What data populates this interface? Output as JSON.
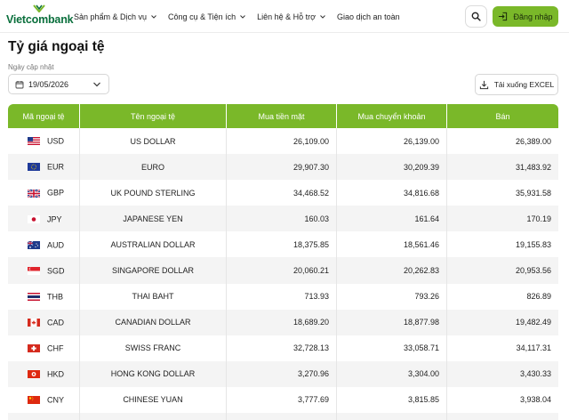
{
  "nav": {
    "brand": "Vietcombank",
    "menu": [
      {
        "label": "Sản phẩm & Dịch vụ",
        "has_dropdown": true
      },
      {
        "label": "Công cụ & Tiện ích",
        "has_dropdown": true
      },
      {
        "label": "Liên hệ & Hỗ trợ",
        "has_dropdown": true
      },
      {
        "label": "Giao dịch an toàn",
        "has_dropdown": false
      }
    ],
    "search_icon": "search-icon",
    "login_label": "Đăng nhập",
    "accent_color": "#7ab829",
    "brand_color": "#0a6f3c"
  },
  "page": {
    "title": "Tỷ giá ngoại tệ",
    "update_label": "Ngày cập nhật",
    "date_value": "19/05/2026",
    "download_label": "Tải xuống EXCEL"
  },
  "table": {
    "headers": [
      "Mã ngoại tệ",
      "Tên ngoại tệ",
      "Mua tiền mặt",
      "Mua chuyển khoản",
      "Bán"
    ],
    "rows": [
      {
        "code": "USD",
        "flag": "us",
        "name": "US DOLLAR",
        "cash_buy": "26,109.00",
        "transfer_buy": "26,139.00",
        "sell": "26,389.00"
      },
      {
        "code": "EUR",
        "flag": "eu",
        "name": "EURO",
        "cash_buy": "29,907.30",
        "transfer_buy": "30,209.39",
        "sell": "31,483.92"
      },
      {
        "code": "GBP",
        "flag": "gb",
        "name": "UK POUND STERLING",
        "cash_buy": "34,468.52",
        "transfer_buy": "34,816.68",
        "sell": "35,931.58"
      },
      {
        "code": "JPY",
        "flag": "jp",
        "name": "JAPANESE YEN",
        "cash_buy": "160.03",
        "transfer_buy": "161.64",
        "sell": "170.19"
      },
      {
        "code": "AUD",
        "flag": "au",
        "name": "AUSTRALIAN DOLLAR",
        "cash_buy": "18,375.85",
        "transfer_buy": "18,561.46",
        "sell": "19,155.83"
      },
      {
        "code": "SGD",
        "flag": "sg",
        "name": "SINGAPORE DOLLAR",
        "cash_buy": "20,060.21",
        "transfer_buy": "20,262.83",
        "sell": "20,953.56"
      },
      {
        "code": "THB",
        "flag": "th",
        "name": "THAI BAHT",
        "cash_buy": "713.93",
        "transfer_buy": "793.26",
        "sell": "826.89"
      },
      {
        "code": "CAD",
        "flag": "ca",
        "name": "CANADIAN DOLLAR",
        "cash_buy": "18,689.20",
        "transfer_buy": "18,877.98",
        "sell": "19,482.49"
      },
      {
        "code": "CHF",
        "flag": "ch",
        "name": "SWISS FRANC",
        "cash_buy": "32,728.13",
        "transfer_buy": "33,058.71",
        "sell": "34,117.31"
      },
      {
        "code": "HKD",
        "flag": "hk",
        "name": "HONG KONG DOLLAR",
        "cash_buy": "3,270.96",
        "transfer_buy": "3,304.00",
        "sell": "3,430.33"
      },
      {
        "code": "CNY",
        "flag": "cn",
        "name": "CHINESE YUAN",
        "cash_buy": "3,777.69",
        "transfer_buy": "3,815.85",
        "sell": "3,938.04"
      },
      {
        "code": "",
        "flag": "",
        "name": "",
        "cash_buy": "",
        "transfer_buy": "",
        "sell": ""
      }
    ]
  }
}
